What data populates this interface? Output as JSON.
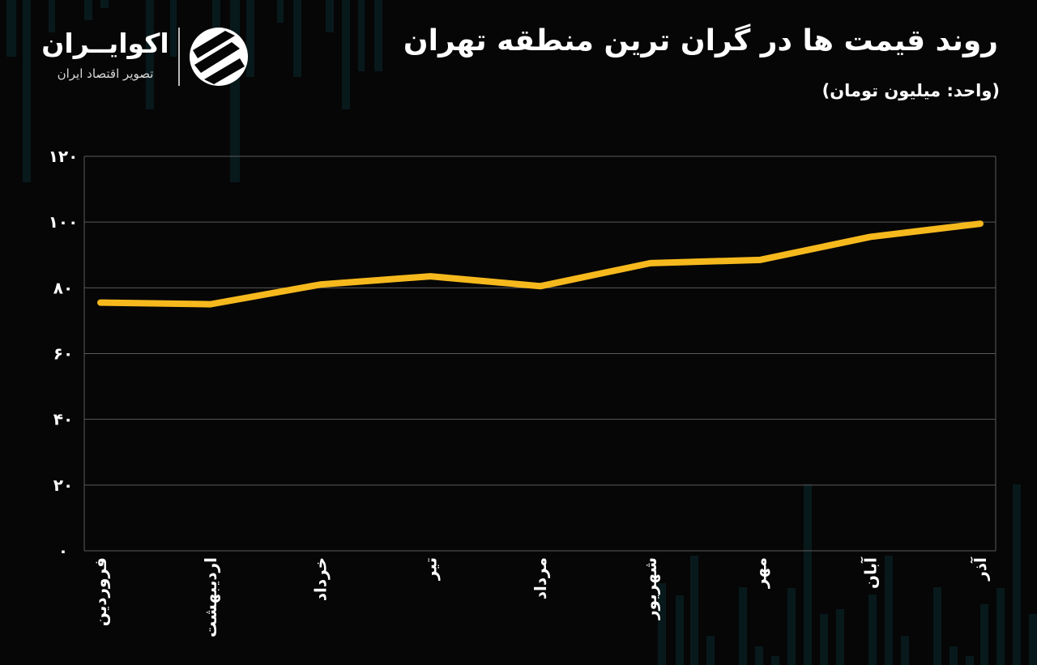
{
  "header": {
    "title": "روند قیمت ها در گران ترین منطقه تهران",
    "unit": "(واحد: میلیون تومان)"
  },
  "brand": {
    "name": "اکوایــران",
    "tagline": "تصویر اقتصاد ایران",
    "logo_icon": "ecoiran-logo-icon"
  },
  "colors": {
    "background": "#060606",
    "line": "#f6b91d",
    "grid": "#5a5a5a",
    "text": "#ffffff"
  },
  "chart_data": {
    "type": "line",
    "title": "روند قیمت ها در گران ترین منطقه تهران",
    "subtitle": "(واحد: میلیون تومان)",
    "categories": [
      "فروردین",
      "اردیبهشت",
      "خرداد",
      "تیر",
      "مرداد",
      "شهریور",
      "مهر",
      "آبان",
      "آذر"
    ],
    "values": [
      75.5,
      75,
      81,
      83.5,
      80.5,
      87.5,
      88.5,
      95.5,
      99.5
    ],
    "y_tick_labels": [
      "۰",
      "۲۰",
      "۴۰",
      "۶۰",
      "۸۰",
      "۱۰۰",
      "۱۲۰"
    ],
    "y_ticks": [
      0,
      20,
      40,
      60,
      80,
      100,
      120
    ],
    "ylim": [
      0,
      120
    ],
    "grid": true,
    "legend": "none"
  }
}
